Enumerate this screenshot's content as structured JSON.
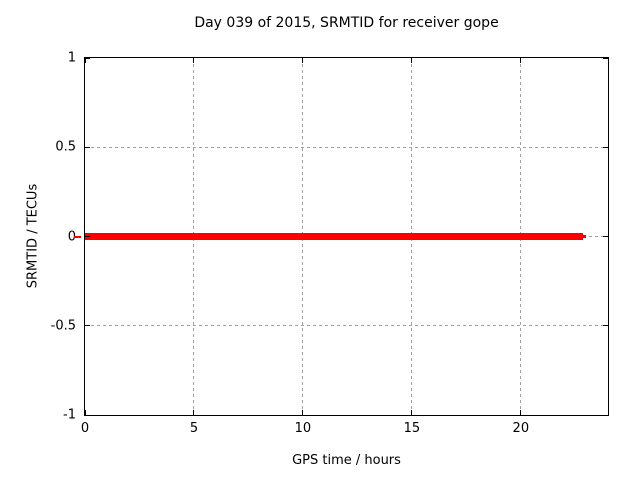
{
  "chart_data": {
    "type": "line",
    "title": "Day 039 of 2015, SRMTID for receiver gope",
    "xlabel": "GPS time / hours",
    "ylabel": "SRMTID / TECUs",
    "xlim": [
      0,
      24
    ],
    "ylim": [
      -1,
      1
    ],
    "xticks": [
      0,
      5,
      10,
      15,
      20
    ],
    "xtick_labels": [
      "0",
      "5",
      "10",
      "15",
      "20"
    ],
    "yticks": [
      1,
      0.5,
      0,
      -0.5,
      -1
    ],
    "ytick_labels": [
      "1",
      "0.5",
      "0",
      "-0.5",
      "-1"
    ],
    "grid": "dashed, on major ticks",
    "grid_color": "#a0a0a0",
    "border_color": "#000000",
    "text_color": "#000000",
    "background_color": "#ffffff",
    "legend": "none",
    "series": [
      {
        "name": "SRMTID",
        "color": "#ff0000",
        "y": 0,
        "segments": [
          {
            "x": [
              -0.5,
              -0.18
            ],
            "y": 0,
            "linewidth": 2
          },
          {
            "x": [
              0,
              22.86
            ],
            "y": 0,
            "linewidth": 7
          },
          {
            "x": [
              22.86,
              23.0
            ],
            "y": 0,
            "linewidth": 3
          }
        ]
      }
    ]
  }
}
